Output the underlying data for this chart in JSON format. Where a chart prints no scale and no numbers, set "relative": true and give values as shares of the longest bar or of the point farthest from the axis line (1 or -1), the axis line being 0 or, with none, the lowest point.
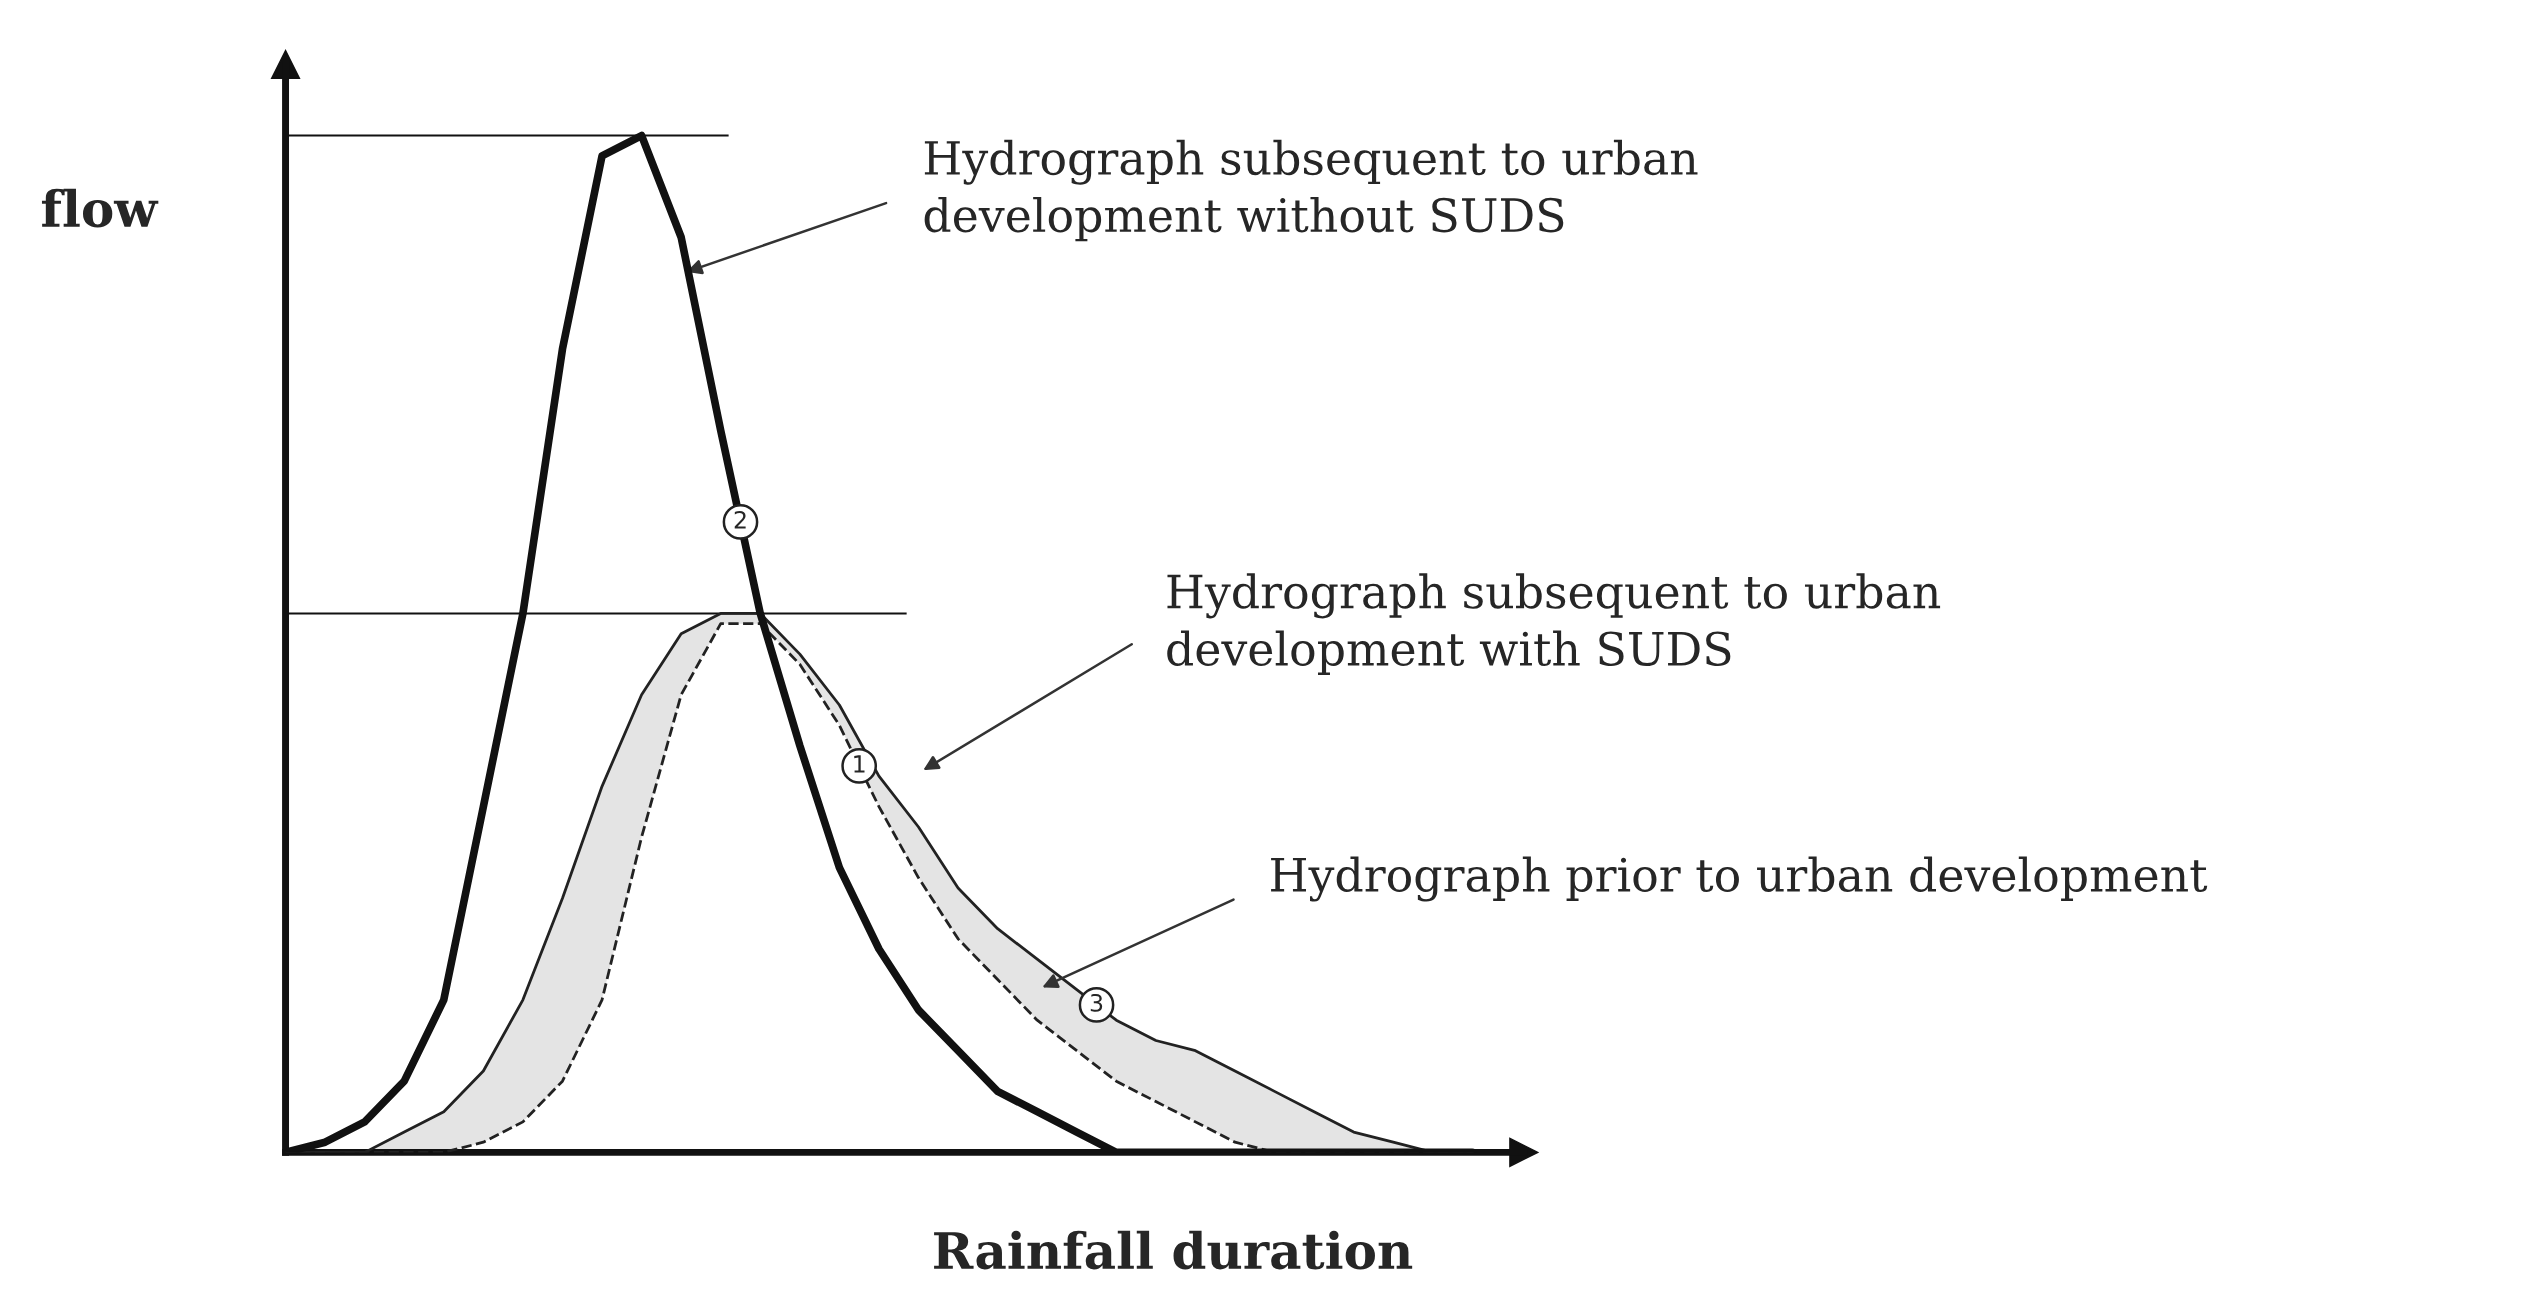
{
  "chart_data": {
    "type": "line",
    "relative": true,
    "xlabel": "Rainfall duration",
    "ylabel": "flow",
    "categories": [
      null,
      null,
      null,
      null,
      null,
      null,
      null,
      null,
      null,
      null,
      null,
      null,
      null,
      null,
      null,
      null,
      null,
      null,
      null,
      null,
      null,
      null,
      null,
      null,
      null,
      null,
      null,
      null,
      null,
      null,
      null
    ],
    "series": [
      {
        "name": "2",
        "color": "#111111",
        "line_style": "solid",
        "values": [
          0,
          0.01,
          0.03,
          0.07,
          0.15,
          0.34,
          0.53,
          0.79,
          0.98,
          1,
          0.9,
          0.71,
          0.53,
          0.4,
          0.28,
          0.2,
          0.14,
          0.1,
          0.06,
          0.04,
          0.02,
          0,
          0,
          0,
          0,
          0,
          0,
          0,
          0,
          0,
          0
        ]
      },
      {
        "name": "3",
        "color": "#222222",
        "line_style": "solid",
        "values": [
          0,
          0,
          0,
          0.02,
          0.04,
          0.08,
          0.15,
          0.25,
          0.36,
          0.45,
          0.51,
          0.53,
          0.53,
          0.49,
          0.44,
          0.37,
          0.32,
          0.26,
          0.22,
          0.19,
          0.16,
          0.13,
          0.11,
          0.1,
          0.08,
          0.06,
          0.04,
          0.02,
          0.01,
          0,
          0
        ],
        "lower": [
          0,
          0,
          0,
          0,
          0,
          0.01,
          0.03,
          0.07,
          0.15,
          0.31,
          0.45,
          0.52,
          0.52,
          0.48,
          0.42,
          0.34,
          0.27,
          0.21,
          0.17,
          0.13,
          0.1,
          0.07,
          0.05,
          0.03,
          0.01,
          0,
          0,
          0,
          0,
          0,
          0
        ],
        "upper": [
          0,
          0,
          0,
          0.02,
          0.04,
          0.08,
          0.15,
          0.25,
          0.36,
          0.45,
          0.51,
          0.53,
          0.53,
          0.49,
          0.44,
          0.37,
          0.32,
          0.26,
          0.22,
          0.19,
          0.16,
          0.13,
          0.11,
          0.1,
          0.08,
          0.06,
          0.04,
          0.02,
          0.01,
          0,
          0
        ]
      },
      {
        "name": "1",
        "color": "#222222",
        "line_style": "dashed",
        "values": [
          0,
          0,
          0,
          0,
          0,
          0.01,
          0.03,
          0.07,
          0.15,
          0.31,
          0.45,
          0.52,
          0.52,
          0.48,
          0.42,
          0.34,
          0.27,
          0.21,
          0.17,
          0.13,
          0.1,
          0.07,
          0.05,
          0.03,
          0.01,
          0,
          0,
          0,
          0,
          0,
          0
        ]
      }
    ],
    "ref_lines": [
      {
        "axis": "y",
        "value": 1,
        "color": "#111111"
      },
      {
        "axis": "y",
        "value": 0.53,
        "color": "#111111"
      }
    ],
    "annotations": [
      "Hydrograph subsequent to urban development without SUDS",
      "Hydrograph subsequent to urban development with SUDS",
      "Hydrograph prior to urban development"
    ]
  }
}
